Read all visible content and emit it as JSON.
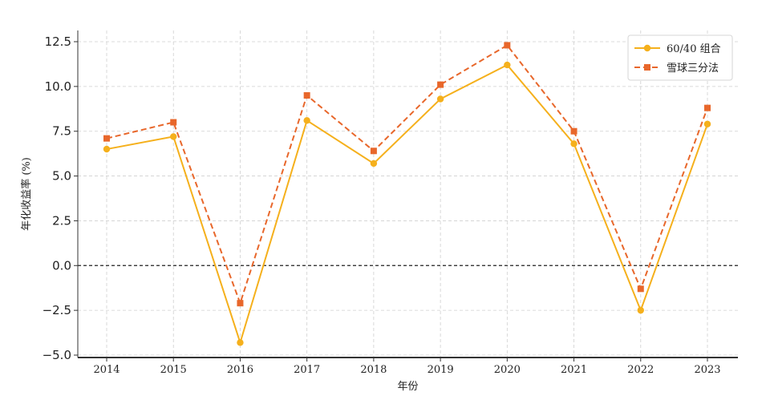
{
  "chart_data": {
    "type": "line",
    "title": "",
    "xlabel": "年份",
    "ylabel": "年化收益率 (%)",
    "x": [
      "2014",
      "2015",
      "2016",
      "2017",
      "2018",
      "2019",
      "2020",
      "2021",
      "2022",
      "2023"
    ],
    "ylim": [
      -5.0,
      12.5
    ],
    "yticks": [
      "−5.0",
      "−2.5",
      "0.0",
      "2.5",
      "5.0",
      "7.5",
      "10.0",
      "12.5"
    ],
    "ytick_values": [
      -5.0,
      -2.5,
      0.0,
      2.5,
      5.0,
      7.5,
      10.0,
      12.5
    ],
    "grid": true,
    "legend_position": "top-right",
    "zero_line": true,
    "series": [
      {
        "name": "60/40 组合",
        "values": [
          6.5,
          7.2,
          -4.3,
          8.1,
          5.7,
          9.3,
          11.2,
          6.8,
          -2.5,
          7.9
        ],
        "color": "#f5b01c",
        "style": "solid",
        "marker": "circle"
      },
      {
        "name": "雪球三分法",
        "values": [
          7.1,
          8.0,
          -2.1,
          9.5,
          6.4,
          10.1,
          12.3,
          7.5,
          -1.3,
          8.8
        ],
        "color": "#e8672b",
        "style": "dashed",
        "marker": "square"
      }
    ]
  }
}
